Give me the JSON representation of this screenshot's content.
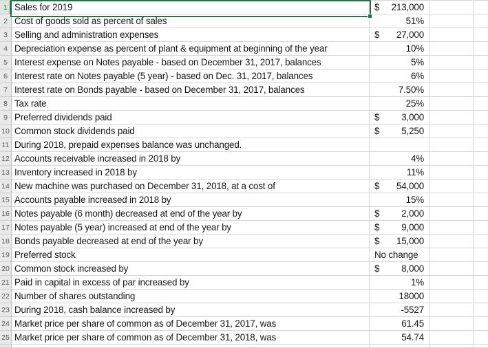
{
  "app": {
    "kind": "spreadsheet-grid",
    "visible_rows": 25
  },
  "colors": {
    "selection_green": "#217346",
    "gridline": "#d6d6d6",
    "row_header_bg": "#e9e9e9",
    "row_header_selected_bg": "#dfe6df",
    "row_header_text": "#5c5c5c",
    "cell_text": "#161616"
  },
  "selection": {
    "row": "1",
    "target": "description-cell"
  },
  "rows": [
    {
      "num": "1",
      "desc": "Sales for 2019",
      "currency": "$",
      "value": "213,000",
      "align": "right",
      "selected": true
    },
    {
      "num": "2",
      "desc": "Cost of goods sold as percent of sales",
      "currency": "",
      "value": "51%",
      "align": "right"
    },
    {
      "num": "3",
      "desc": "Selling and administration expenses",
      "currency": "$",
      "value": "27,000",
      "align": "right"
    },
    {
      "num": "4",
      "desc": "Depreciation expense as percent of plant & equipment at beginning of the year",
      "currency": "",
      "value": "10%",
      "align": "right"
    },
    {
      "num": "5",
      "desc": "Interest expense on Notes payable - based on December 31, 2017, balances",
      "currency": "",
      "value": "5%",
      "align": "right"
    },
    {
      "num": "6",
      "desc": "Interest rate on Notes payable (5 year) - based on Dec. 31, 2017, balances",
      "currency": "",
      "value": "6%",
      "align": "right"
    },
    {
      "num": "7",
      "desc": "Interest rate on Bonds payable - based on December 31, 2017, balances",
      "currency": "",
      "value": "7.50%",
      "align": "right"
    },
    {
      "num": "8",
      "desc": "Tax rate",
      "currency": "",
      "value": "25%",
      "align": "right"
    },
    {
      "num": "9",
      "desc": "Preferred dividends paid",
      "currency": "$",
      "value": "3,000",
      "align": "right"
    },
    {
      "num": "10",
      "desc": "Common stock dividends paid",
      "currency": "$",
      "value": "5,250",
      "align": "right"
    },
    {
      "num": "11",
      "desc": "During 2018, prepaid expenses balance was unchanged.",
      "currency": "",
      "value": "",
      "align": "right"
    },
    {
      "num": "12",
      "desc": "Accounts receivable increased in 2018 by",
      "currency": "",
      "value": "4%",
      "align": "right"
    },
    {
      "num": "13",
      "desc": "Inventory increased in 2018 by",
      "currency": "",
      "value": "11%",
      "align": "right"
    },
    {
      "num": "14",
      "desc": "New machine was purchased on December 31, 2018, at a cost of",
      "currency": "$",
      "value": "54,000",
      "align": "right"
    },
    {
      "num": "15",
      "desc": "Accounts payable increased in 2018 by",
      "currency": "",
      "value": "15%",
      "align": "right"
    },
    {
      "num": "16",
      "desc": "Notes payable (6 month) decreased at end of the year by",
      "currency": "$",
      "value": "2,000",
      "align": "right"
    },
    {
      "num": "17",
      "desc": "Notes payable (5 year) increased at end of the year by",
      "currency": "$",
      "value": "9,000",
      "align": "right"
    },
    {
      "num": "18",
      "desc": "Bonds payable decreased at end of the year by",
      "currency": "$",
      "value": "15,000",
      "align": "right"
    },
    {
      "num": "19",
      "desc": "Preferred stock",
      "currency": "",
      "value": "No change",
      "align": "left"
    },
    {
      "num": "20",
      "desc": "Common stock increased by",
      "currency": "$",
      "value": "8,000",
      "align": "right"
    },
    {
      "num": "21",
      "desc": "Paid in capital in excess of par increased by",
      "currency": "",
      "value": "1%",
      "align": "right"
    },
    {
      "num": "22",
      "desc": "Number of shares outstanding",
      "currency": "",
      "value": "18000",
      "align": "right"
    },
    {
      "num": "23",
      "desc": "During 2018, cash balance increased by",
      "currency": "",
      "value": "-5527",
      "align": "right"
    },
    {
      "num": "24",
      "desc": "Market price per share of common as of December 31, 2017, was",
      "currency": "",
      "value": "61.45",
      "align": "right"
    },
    {
      "num": "25",
      "desc": "Market price per share of common as of December 31, 2018, was",
      "currency": "",
      "value": "54.74",
      "align": "right"
    }
  ]
}
